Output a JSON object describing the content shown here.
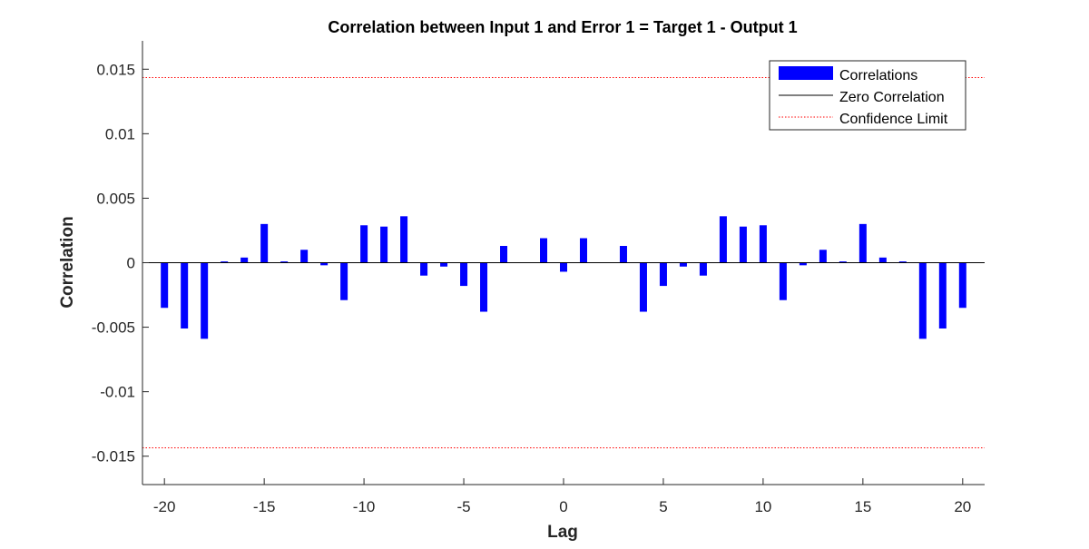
{
  "chart_data": {
    "type": "bar",
    "title": "Correlation between Input 1 and Error 1 = Target 1 - Output 1",
    "xlabel": "Lag",
    "ylabel": "Correlation",
    "xlim": [
      -21.1,
      21.1
    ],
    "ylim": [
      -0.0172,
      0.0172
    ],
    "x_ticks": [
      -20,
      -15,
      -10,
      -5,
      0,
      5,
      10,
      15,
      20
    ],
    "y_ticks": [
      0.015,
      0.01,
      0.005,
      0,
      -0.005,
      -0.01,
      -0.015
    ],
    "x_tick_labels": [
      "-20",
      "-15",
      "-10",
      "-5",
      "0",
      "5",
      "10",
      "15",
      "20"
    ],
    "y_tick_labels": [
      "0.015",
      "0.01",
      "0.005",
      "0",
      "-0.005",
      "-0.01",
      "-0.015"
    ],
    "x": [
      -20,
      -19,
      -18,
      -17,
      -16,
      -15,
      -14,
      -13,
      -12,
      -11,
      -10,
      -9,
      -8,
      -7,
      -6,
      -5,
      -4,
      -3,
      -2,
      -1,
      0,
      1,
      2,
      3,
      4,
      5,
      6,
      7,
      8,
      9,
      10,
      11,
      12,
      13,
      14,
      15,
      16,
      17,
      18,
      19,
      20
    ],
    "series": [
      {
        "name": "Correlations",
        "color": "#0000ff",
        "values": [
          -0.0035,
          -0.0051,
          -0.0059,
          0.0001,
          0.0004,
          0.003,
          0.0001,
          0.001,
          -0.0002,
          -0.0029,
          0.0029,
          0.0028,
          0.0036,
          -0.001,
          -0.0003,
          -0.0018,
          -0.0038,
          0.0013,
          0.0,
          0.0019,
          -0.0007,
          0.0019,
          0.0,
          0.0013,
          -0.0038,
          -0.0018,
          -0.0003,
          -0.001,
          0.0036,
          0.0028,
          0.0029,
          -0.0029,
          -0.0002,
          0.001,
          0.0001,
          0.003,
          0.0004,
          0.0001,
          -0.0059,
          -0.0051,
          -0.0035
        ]
      }
    ],
    "zero_line": {
      "name": "Zero Correlation",
      "value": 0,
      "color": "#000000"
    },
    "confidence_limit": {
      "name": "Confidence Limit",
      "value": 0.01435,
      "color": "#ff0000"
    },
    "grid": false,
    "legend_position": "top-right"
  }
}
